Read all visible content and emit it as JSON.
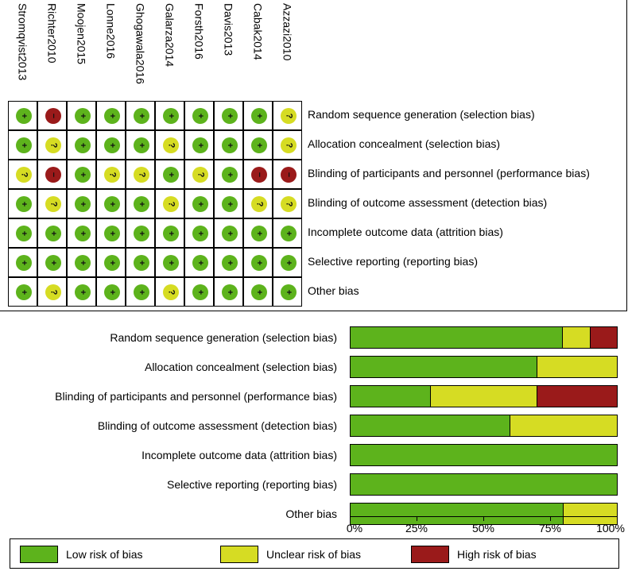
{
  "colors": {
    "low": "#5db31c",
    "unclear": "#d6dc23",
    "high": "#9a1a1a"
  },
  "studies": [
    "Stromqvist2013",
    "Richter2010",
    "Moojen2015",
    "Lonne2016",
    "Ghogawala2016",
    "Galarza2014",
    "Forsth2016",
    "Davis2013",
    "Cabak2014",
    "Azzazi2010"
  ],
  "domains": [
    "Random sequence generation (selection bias)",
    "Allocation concealment (selection bias)",
    "Blinding of participants and personnel (performance bias)",
    "Blinding of outcome assessment (detection bias)",
    "Incomplete outcome data (attrition bias)",
    "Selective reporting (reporting bias)",
    "Other bias"
  ],
  "symbols": {
    "low": "+",
    "unclear": "?",
    "high": "−"
  },
  "judgements": [
    [
      "low",
      "high",
      "low",
      "low",
      "low",
      "low",
      "low",
      "low",
      "low",
      "unclear"
    ],
    [
      "low",
      "unclear",
      "low",
      "low",
      "low",
      "unclear",
      "low",
      "low",
      "low",
      "unclear"
    ],
    [
      "unclear",
      "high",
      "low",
      "unclear",
      "unclear",
      "low",
      "unclear",
      "low",
      "high",
      "high"
    ],
    [
      "low",
      "unclear",
      "low",
      "low",
      "low",
      "unclear",
      "low",
      "low",
      "unclear",
      "unclear"
    ],
    [
      "low",
      "low",
      "low",
      "low",
      "low",
      "low",
      "low",
      "low",
      "low",
      "low"
    ],
    [
      "low",
      "low",
      "low",
      "low",
      "low",
      "low",
      "low",
      "low",
      "low",
      "low"
    ],
    [
      "low",
      "unclear",
      "low",
      "low",
      "low",
      "unclear",
      "low",
      "low",
      "low",
      "low"
    ]
  ],
  "chart_data": {
    "type": "bar",
    "stacked": true,
    "orientation": "horizontal",
    "categories": [
      "Random sequence generation (selection bias)",
      "Allocation concealment (selection bias)",
      "Blinding of participants and personnel (performance bias)",
      "Blinding of outcome assessment (detection bias)",
      "Incomplete outcome data (attrition bias)",
      "Selective reporting (reporting bias)",
      "Other bias"
    ],
    "series": [
      {
        "name": "Low risk of bias",
        "values": [
          80,
          70,
          30,
          60,
          100,
          100,
          80
        ]
      },
      {
        "name": "Unclear risk of bias",
        "values": [
          10,
          30,
          40,
          40,
          0,
          0,
          20
        ]
      },
      {
        "name": "High risk of bias",
        "values": [
          10,
          0,
          30,
          0,
          0,
          0,
          0
        ]
      }
    ],
    "xlim": [
      0,
      100
    ],
    "xticks": [
      "0%",
      "25%",
      "50%",
      "75%",
      "100%"
    ],
    "legend": "bottom"
  }
}
